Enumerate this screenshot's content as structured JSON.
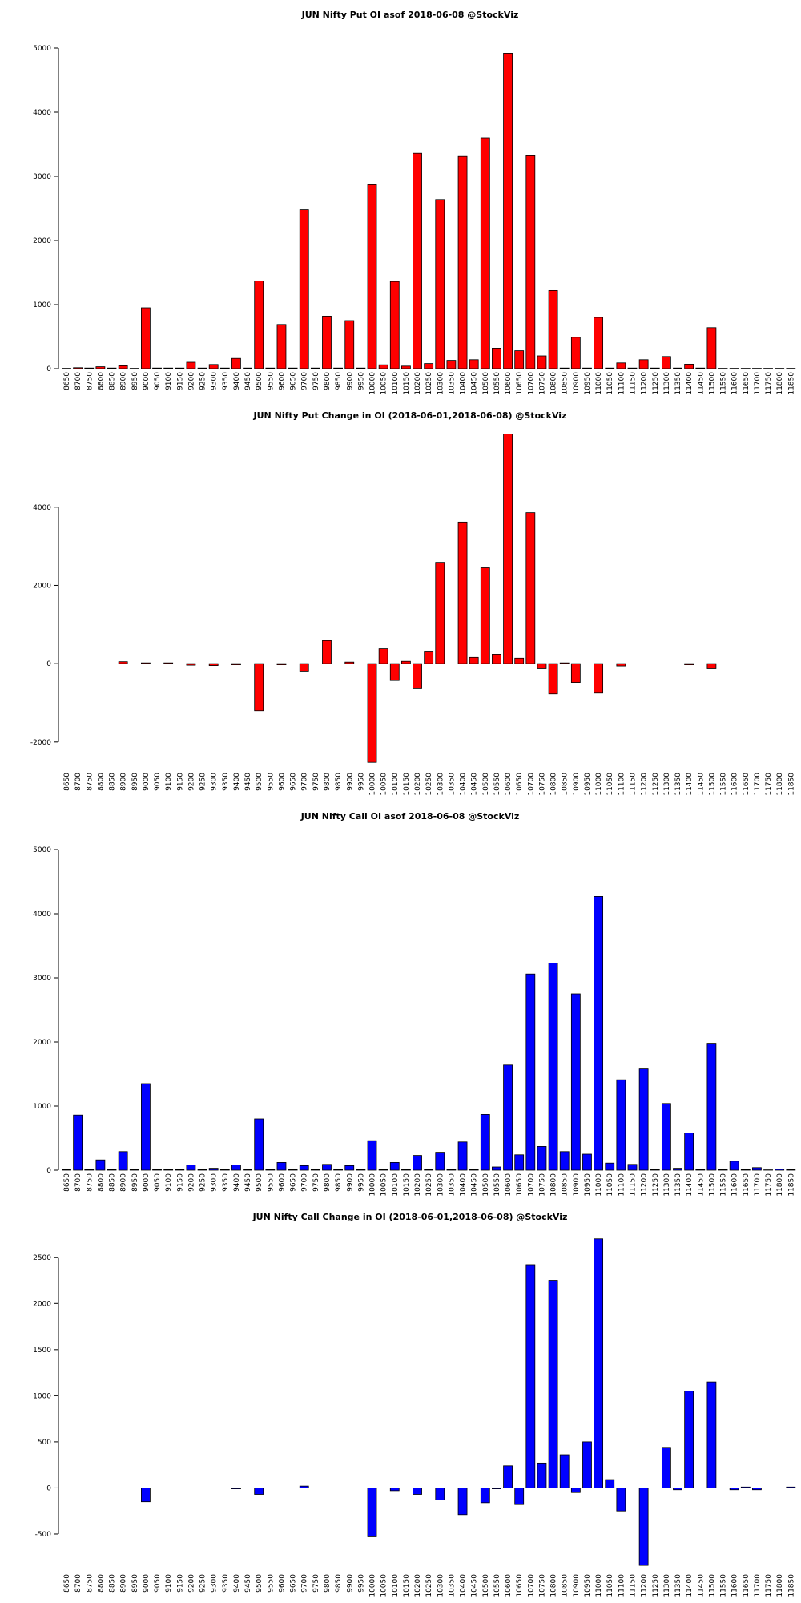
{
  "chart_data": [
    {
      "type": "bar",
      "title": "JUN Nifty Put OI asof 2018-06-08 @StockViz",
      "color": "#ff0000",
      "categories": [
        "8650",
        "8700",
        "8750",
        "8800",
        "8850",
        "8900",
        "8950",
        "9000",
        "9050",
        "9100",
        "9150",
        "9200",
        "9250",
        "9300",
        "9350",
        "9400",
        "9450",
        "9500",
        "9550",
        "9600",
        "9650",
        "9700",
        "9750",
        "9800",
        "9850",
        "9900",
        "9950",
        "10000",
        "10050",
        "10100",
        "10150",
        "10200",
        "10250",
        "10300",
        "10350",
        "10400",
        "10450",
        "10500",
        "10550",
        "10600",
        "10650",
        "10700",
        "10750",
        "10800",
        "10850",
        "10900",
        "10950",
        "11000",
        "11050",
        "11100",
        "11150",
        "11200",
        "11250",
        "11300",
        "11350",
        "11400",
        "11450",
        "11500",
        "11550",
        "11600",
        "11650",
        "11700",
        "11750",
        "11800",
        "11850"
      ],
      "values": [
        5,
        15,
        10,
        30,
        10,
        45,
        5,
        950,
        10,
        10,
        10,
        100,
        10,
        65,
        10,
        160,
        10,
        1370,
        10,
        690,
        10,
        2480,
        10,
        820,
        10,
        750,
        10,
        2870,
        60,
        1360,
        40,
        3360,
        80,
        2640,
        130,
        3310,
        140,
        3600,
        320,
        4920,
        280,
        3320,
        200,
        1220,
        10,
        490,
        10,
        800,
        10,
        90,
        10,
        140,
        10,
        190,
        10,
        70,
        10,
        640,
        5,
        5,
        5,
        5,
        5,
        5,
        5
      ],
      "ylim": [
        0,
        5250
      ],
      "yticks": [
        0,
        1000,
        2000,
        3000,
        4000,
        5000
      ]
    },
    {
      "type": "bar",
      "title": "JUN Nifty Put Change in OI (2018-06-01,2018-06-08) @StockViz",
      "color": "#ff0000",
      "categories": [
        "8650",
        "8700",
        "8750",
        "8800",
        "8850",
        "8900",
        "8950",
        "9000",
        "9050",
        "9100",
        "9150",
        "9200",
        "9250",
        "9300",
        "9350",
        "9400",
        "9450",
        "9500",
        "9550",
        "9600",
        "9650",
        "9700",
        "9750",
        "9800",
        "9850",
        "9900",
        "9950",
        "10000",
        "10050",
        "10100",
        "10150",
        "10200",
        "10250",
        "10300",
        "10350",
        "10400",
        "10450",
        "10500",
        "10550",
        "10600",
        "10650",
        "10700",
        "10750",
        "10800",
        "10850",
        "10900",
        "10950",
        "11000",
        "11050",
        "11100",
        "11150",
        "11200",
        "11250",
        "11300",
        "11350",
        "11400",
        "11450",
        "11500",
        "11550",
        "11600",
        "11650",
        "11700",
        "11750",
        "11800",
        "11850"
      ],
      "values": [
        0,
        0,
        0,
        0,
        0,
        50,
        0,
        20,
        0,
        20,
        0,
        -40,
        0,
        -50,
        0,
        -30,
        0,
        -1200,
        0,
        -30,
        0,
        -190,
        0,
        590,
        0,
        40,
        0,
        -2520,
        380,
        -430,
        60,
        -640,
        320,
        2590,
        0,
        3620,
        160,
        2450,
        240,
        5870,
        140,
        3860,
        -130,
        -770,
        20,
        -480,
        0,
        -750,
        0,
        -60,
        0,
        0,
        0,
        0,
        0,
        -30,
        0,
        -130,
        0,
        0,
        0,
        0,
        0,
        0,
        0
      ],
      "ylim": [
        -2700,
        5900
      ],
      "yticks": [
        -2000,
        0,
        2000,
        4000
      ]
    },
    {
      "type": "bar",
      "title": "JUN Nifty Call OI asof 2018-06-08 @StockViz",
      "color": "#0000ff",
      "categories": [
        "8650",
        "8700",
        "8750",
        "8800",
        "8850",
        "8900",
        "8950",
        "9000",
        "9050",
        "9100",
        "9150",
        "9200",
        "9250",
        "9300",
        "9350",
        "9400",
        "9450",
        "9500",
        "9550",
        "9600",
        "9650",
        "9700",
        "9750",
        "9800",
        "9850",
        "9900",
        "9950",
        "10000",
        "10050",
        "10100",
        "10150",
        "10200",
        "10250",
        "10300",
        "10350",
        "10400",
        "10450",
        "10500",
        "10550",
        "10600",
        "10650",
        "10700",
        "10750",
        "10800",
        "10850",
        "10900",
        "10950",
        "11000",
        "11050",
        "11100",
        "11150",
        "11200",
        "11250",
        "11300",
        "11350",
        "11400",
        "11450",
        "11500",
        "11550",
        "11600",
        "11650",
        "11700",
        "11750",
        "11800",
        "11850"
      ],
      "values": [
        10,
        860,
        10,
        160,
        10,
        290,
        10,
        1350,
        10,
        10,
        10,
        80,
        10,
        30,
        10,
        80,
        10,
        800,
        10,
        120,
        10,
        70,
        10,
        90,
        10,
        70,
        10,
        460,
        10,
        120,
        10,
        230,
        10,
        280,
        10,
        440,
        10,
        870,
        50,
        1640,
        240,
        3060,
        370,
        3230,
        290,
        2750,
        250,
        4270,
        110,
        1410,
        90,
        1580,
        10,
        1040,
        30,
        580,
        10,
        1980,
        10,
        140,
        10,
        40,
        5,
        20,
        10
      ],
      "ylim": [
        0,
        5250
      ],
      "yticks": [
        0,
        1000,
        2000,
        3000,
        4000,
        5000
      ]
    },
    {
      "type": "bar",
      "title": "JUN Nifty Call Change in OI (2018-06-01,2018-06-08) @StockViz",
      "color": "#0000ff",
      "categories": [
        "8650",
        "8700",
        "8750",
        "8800",
        "8850",
        "8900",
        "8950",
        "9000",
        "9050",
        "9100",
        "9150",
        "9200",
        "9250",
        "9300",
        "9350",
        "9400",
        "9450",
        "9500",
        "9550",
        "9600",
        "9650",
        "9700",
        "9750",
        "9800",
        "9850",
        "9900",
        "9950",
        "10000",
        "10050",
        "10100",
        "10150",
        "10200",
        "10250",
        "10300",
        "10350",
        "10400",
        "10450",
        "10500",
        "10550",
        "10600",
        "10650",
        "10700",
        "10750",
        "10800",
        "10850",
        "10900",
        "10950",
        "11000",
        "11050",
        "11100",
        "11150",
        "11200",
        "11250",
        "11300",
        "11350",
        "11400",
        "11450",
        "11500",
        "11550",
        "11600",
        "11650",
        "11700",
        "11750",
        "11800",
        "11850"
      ],
      "values": [
        0,
        0,
        0,
        0,
        0,
        0,
        0,
        -150,
        0,
        0,
        0,
        0,
        0,
        0,
        0,
        -10,
        0,
        -70,
        0,
        0,
        0,
        20,
        0,
        0,
        0,
        0,
        0,
        -530,
        0,
        -30,
        0,
        -70,
        0,
        -130,
        0,
        -290,
        0,
        -160,
        -10,
        240,
        -180,
        2420,
        270,
        2250,
        360,
        -50,
        500,
        2700,
        90,
        -250,
        0,
        -840,
        0,
        440,
        -20,
        1050,
        0,
        1150,
        0,
        -20,
        10,
        -20,
        0,
        0,
        10
      ],
      "ylim": [
        -900,
        2750
      ],
      "yticks": [
        -500,
        0,
        500,
        1000,
        1500,
        2000,
        2500
      ]
    }
  ]
}
